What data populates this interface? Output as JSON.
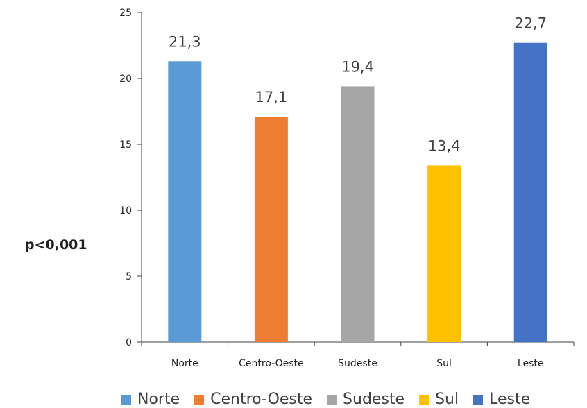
{
  "chart_data": {
    "type": "bar",
    "categories": [
      "Norte",
      "Centro-Oeste",
      "Sudeste",
      "Sul",
      "Leste"
    ],
    "values": [
      21.3,
      17.1,
      19.4,
      13.4,
      22.7
    ],
    "value_labels": [
      "21,3",
      "17,1",
      "19,4",
      "13,4",
      "22,7"
    ],
    "colors": [
      "#5B9BD5",
      "#ED7D31",
      "#A5A5A5",
      "#FFC000",
      "#4472C4"
    ],
    "ylim": [
      0,
      25
    ],
    "yticks": [
      0,
      5,
      10,
      15,
      20,
      25
    ],
    "grid": false,
    "legend": "bottom",
    "annotation": "p<0,001"
  }
}
